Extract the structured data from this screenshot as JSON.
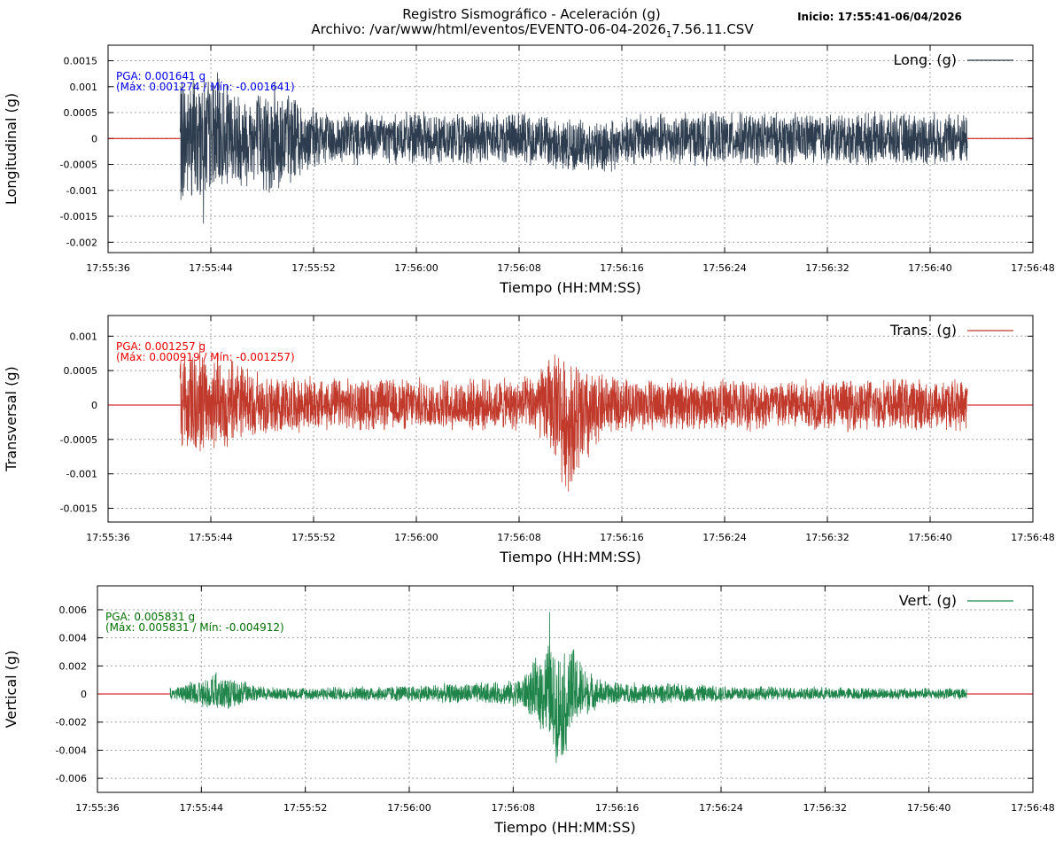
{
  "header": {
    "title": "Registro Sismográfico - Aceleración (g)",
    "file_prefix": "Archivo: /var/www/html/eventos/EVENTO-06-04-2026",
    "file_sub": "1",
    "file_suffix": "7.56.11.CSV",
    "start": "Inicio: 17:55:41-06/04/2026"
  },
  "chart_data": [
    {
      "type": "line",
      "xlabel": "Tiempo (HH:MM:SS)",
      "ylabel": "Longitudinal (g)",
      "legend": "Long. (g)",
      "color": "#2d3c4e",
      "text_color": "#0000ee",
      "pga_line1": "PGA: 0.001641 g",
      "pga_line2": "(Máx: 0.001274 / Mín: -0.001641)",
      "max": 0.001274,
      "min": -0.001641,
      "ylim": [
        -0.0022,
        0.0018
      ],
      "yticks": [
        0.0015,
        0.001,
        0.0005,
        0,
        -0.0005,
        -0.001,
        -0.0015,
        -0.002
      ],
      "ytick_labels": [
        "0.0015",
        "0.001",
        "0.0005",
        "0",
        "-0.0005",
        "-0.001",
        "-0.0015",
        "-0.002"
      ],
      "xticks": [
        "17:55:36",
        "17:55:44",
        "17:55:52",
        "17:56:00",
        "17:56:08",
        "17:56:16",
        "17:56:24",
        "17:56:32",
        "17:56:40",
        "17:56:48"
      ],
      "signal_start": "17:55:41",
      "signal_end": "17:56:42",
      "grid": true,
      "legend_position": "top-right"
    },
    {
      "type": "line",
      "xlabel": "Tiempo (HH:MM:SS)",
      "ylabel": "Transversal (g)",
      "legend": "Trans. (g)",
      "color": "#c0392b",
      "text_color": "#ee0000",
      "pga_line1": "PGA: 0.001257 g",
      "pga_line2": "(Máx: 0.000919 / Mín: -0.001257)",
      "max": 0.000919,
      "min": -0.001257,
      "ylim": [
        -0.0017,
        0.0013
      ],
      "yticks": [
        0.001,
        0.0005,
        0,
        -0.0005,
        -0.001,
        -0.0015
      ],
      "ytick_labels": [
        "0.001",
        "0.0005",
        "0",
        "-0.0005",
        "-0.001",
        "-0.0015"
      ],
      "xticks": [
        "17:55:36",
        "17:55:44",
        "17:55:52",
        "17:56:00",
        "17:56:08",
        "17:56:16",
        "17:56:24",
        "17:56:32",
        "17:56:40",
        "17:56:48"
      ],
      "signal_start": "17:55:41",
      "signal_end": "17:56:42",
      "grid": true,
      "legend_position": "top-right"
    },
    {
      "type": "line",
      "xlabel": "Tiempo (HH:MM:SS)",
      "ylabel": "Vertical (g)",
      "legend": "Vert. (g)",
      "color": "#1e8449",
      "text_color": "#007000",
      "pga_line1": "PGA: 0.005831 g",
      "pga_line2": "(Máx: 0.005831 / Mín: -0.004912)",
      "max": 0.005831,
      "min": -0.004912,
      "ylim": [
        -0.007,
        0.0077
      ],
      "yticks": [
        0.006,
        0.004,
        0.002,
        0,
        -0.002,
        -0.004,
        -0.006
      ],
      "ytick_labels": [
        "0.006",
        "0.004",
        "0.002",
        "0",
        "-0.002",
        "-0.004",
        "-0.006"
      ],
      "xticks": [
        "17:55:36",
        "17:55:44",
        "17:55:52",
        "17:56:00",
        "17:56:08",
        "17:56:16",
        "17:56:24",
        "17:56:32",
        "17:56:40",
        "17:56:48"
      ],
      "signal_start": "17:55:41",
      "signal_end": "17:56:42",
      "grid": true,
      "legend_position": "top-right"
    }
  ],
  "colors": {
    "baseline": "#cc0000",
    "grid": "#a0a0a0",
    "axis": "#000000"
  }
}
